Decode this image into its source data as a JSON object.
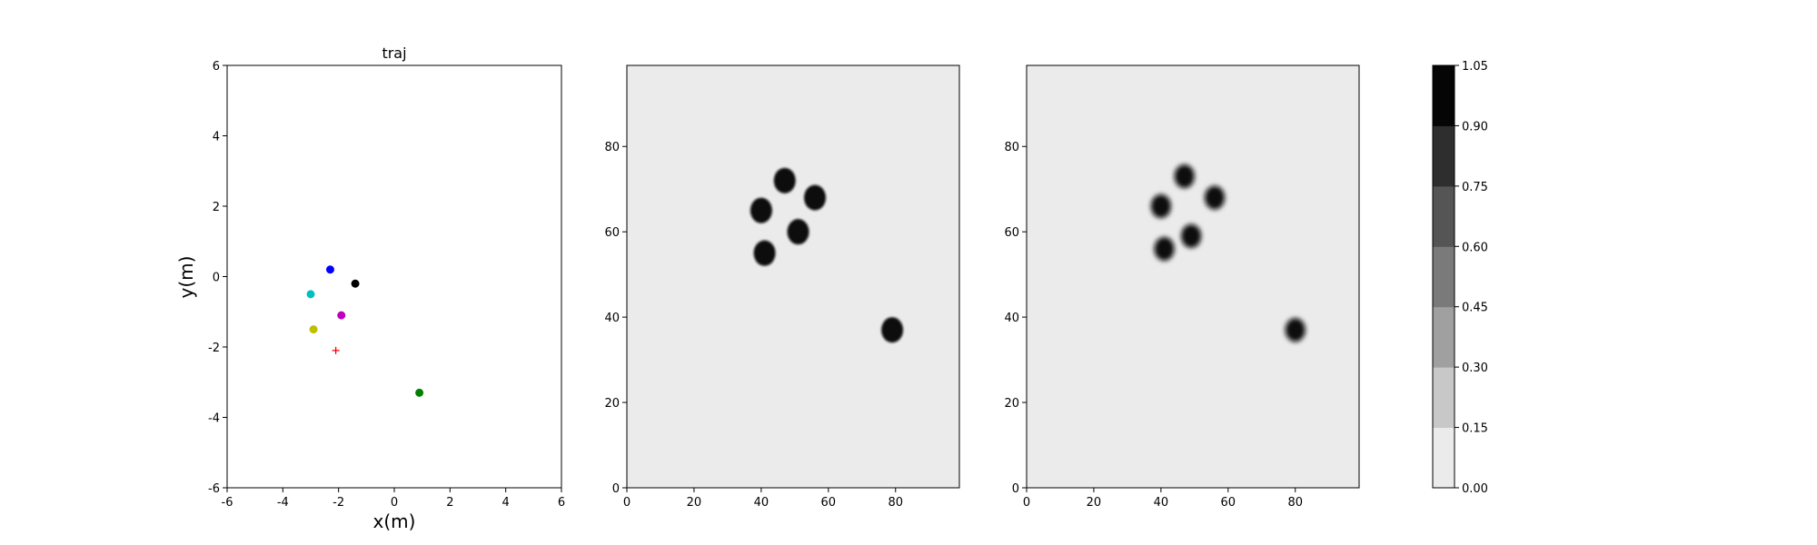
{
  "chart_data": [
    {
      "type": "scatter",
      "title": "traj",
      "xlabel": "x(m)",
      "ylabel": "y(m)",
      "xlim": [
        -6,
        6
      ],
      "ylim": [
        -6,
        6
      ],
      "xticks": [
        -6,
        -4,
        -2,
        0,
        2,
        4,
        6
      ],
      "yticks": [
        -6,
        -4,
        -2,
        0,
        2,
        4,
        6
      ],
      "grid": false,
      "points": [
        {
          "x": -2.3,
          "y": 0.2,
          "marker": "circle",
          "color": "#0000ff"
        },
        {
          "x": -1.4,
          "y": -0.2,
          "marker": "circle",
          "color": "#000000"
        },
        {
          "x": -3.0,
          "y": -0.5,
          "marker": "circle",
          "color": "#00bfbf"
        },
        {
          "x": -1.9,
          "y": -1.1,
          "marker": "circle",
          "color": "#bf00bf"
        },
        {
          "x": -2.9,
          "y": -1.5,
          "marker": "circle",
          "color": "#bfbf00"
        },
        {
          "x": -2.1,
          "y": -2.1,
          "marker": "plus",
          "color": "#ff0000"
        },
        {
          "x": 0.9,
          "y": -3.3,
          "marker": "circle",
          "color": "#008000"
        }
      ]
    },
    {
      "type": "heatmap",
      "xlim": [
        0,
        99
      ],
      "ylim": [
        0,
        99
      ],
      "xticks": [
        0,
        20,
        40,
        60,
        80
      ],
      "yticks": [
        0,
        20,
        40,
        60,
        80
      ],
      "background_value": 0.0,
      "blobs": [
        {
          "x": 40,
          "y": 65,
          "value": 1.0
        },
        {
          "x": 47,
          "y": 72,
          "value": 1.0
        },
        {
          "x": 56,
          "y": 68,
          "value": 1.0
        },
        {
          "x": 51,
          "y": 60,
          "value": 1.0
        },
        {
          "x": 41,
          "y": 55,
          "value": 1.0
        },
        {
          "x": 79,
          "y": 37,
          "value": 1.0
        }
      ]
    },
    {
      "type": "heatmap",
      "xlim": [
        0,
        99
      ],
      "ylim": [
        0,
        99
      ],
      "xticks": [
        0,
        20,
        40,
        60,
        80
      ],
      "yticks": [
        0,
        20,
        40,
        60,
        80
      ],
      "background_value": 0.0,
      "blobs": [
        {
          "x": 40,
          "y": 66,
          "value": 1.0
        },
        {
          "x": 47,
          "y": 73,
          "value": 1.0
        },
        {
          "x": 56,
          "y": 68,
          "value": 1.0
        },
        {
          "x": 49,
          "y": 59,
          "value": 1.0
        },
        {
          "x": 41,
          "y": 56,
          "value": 1.0
        },
        {
          "x": 80,
          "y": 37,
          "value": 1.0
        }
      ]
    }
  ],
  "colorbar": {
    "min": 0.0,
    "max": 1.05,
    "tick_labels": [
      "0.00",
      "0.15",
      "0.30",
      "0.45",
      "0.60",
      "0.75",
      "0.90",
      "1.05"
    ],
    "colors": [
      "#ebebeb",
      "#c8c8c8",
      "#a0a0a0",
      "#7a7a7a",
      "#555555",
      "#2e2e2e",
      "#050505"
    ]
  }
}
